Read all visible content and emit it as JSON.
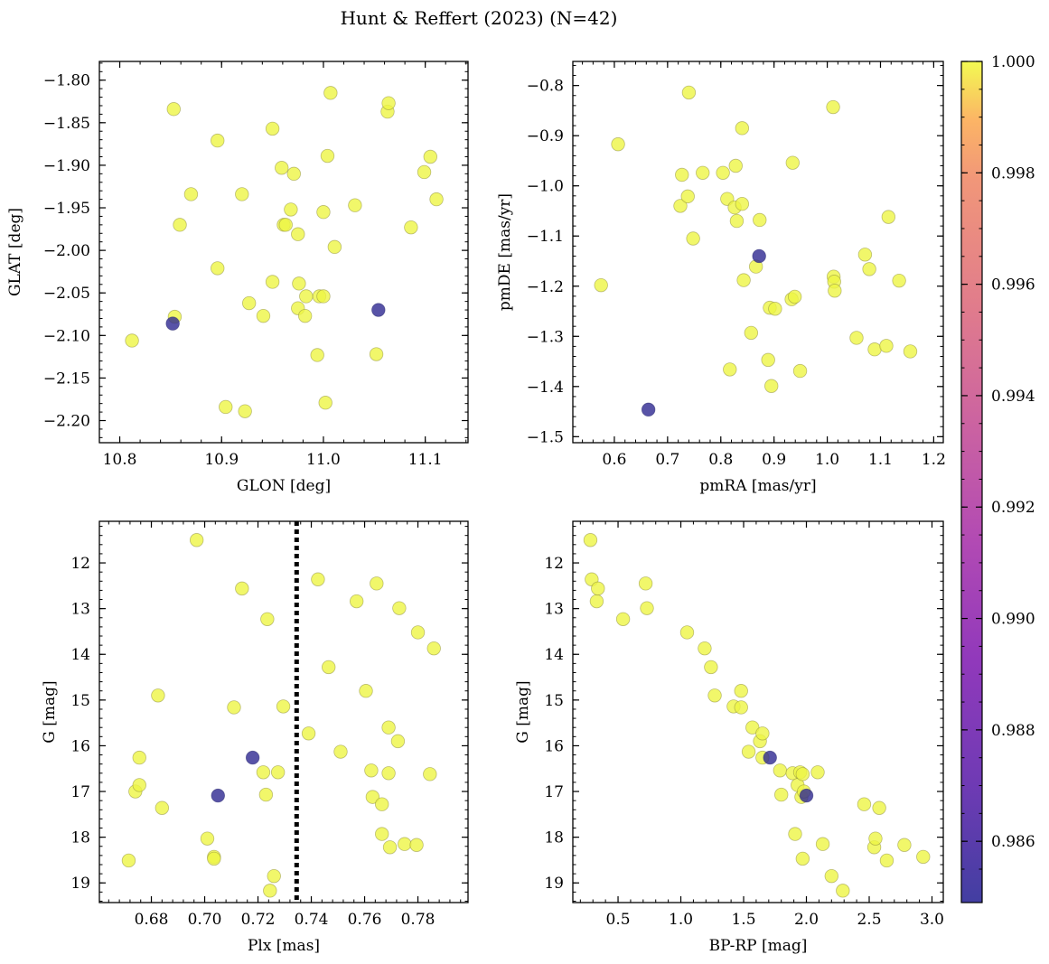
{
  "figure": {
    "title": "Hunt & Reffert (2023) (N=42)"
  },
  "colorbar": {
    "min": 0.9849,
    "max": 1.0,
    "ticks": [
      0.986,
      0.988,
      0.99,
      0.992,
      0.994,
      0.996,
      0.998,
      1.0
    ],
    "tick_labels": [
      "0.986",
      "0.988",
      "0.990",
      "0.992",
      "0.994",
      "0.996",
      "0.998",
      "1.000"
    ],
    "colormap": "plasma",
    "alpha": 0.75
  },
  "chart_data": [
    {
      "type": "scatter",
      "panel": "top-left",
      "xlabel": "GLON [deg]",
      "ylabel": "GLAT [deg]",
      "xlim": [
        10.78,
        11.142
      ],
      "ylim": [
        -2.226,
        -1.778
      ],
      "y_inverted": false,
      "xticks": [
        10.8,
        10.9,
        11.0,
        11.1
      ],
      "xtick_labels": [
        "10.8",
        "10.9",
        "11.0",
        "11.1"
      ],
      "yticks": [
        -2.2,
        -2.15,
        -2.1,
        -2.05,
        -2.0,
        -1.95,
        -1.9,
        -1.85,
        -1.8
      ],
      "ytick_labels": [
        "−2.20",
        "−2.15",
        "−2.10",
        "−2.05",
        "−2.00",
        "−1.95",
        "−1.90",
        "−1.85",
        "−1.80"
      ],
      "points": [
        {
          "x": 10.812,
          "y": -2.106,
          "p": 1.0
        },
        {
          "x": 10.853,
          "y": -1.834,
          "p": 1.0
        },
        {
          "x": 10.854,
          "y": -2.078,
          "p": 1.0
        },
        {
          "x": 10.859,
          "y": -1.97,
          "p": 1.0
        },
        {
          "x": 10.87,
          "y": -1.934,
          "p": 1.0
        },
        {
          "x": 10.896,
          "y": -1.871,
          "p": 1.0
        },
        {
          "x": 10.896,
          "y": -2.021,
          "p": 1.0
        },
        {
          "x": 10.904,
          "y": -2.184,
          "p": 1.0
        },
        {
          "x": 10.92,
          "y": -1.934,
          "p": 1.0
        },
        {
          "x": 10.923,
          "y": -2.189,
          "p": 1.0
        },
        {
          "x": 10.927,
          "y": -2.062,
          "p": 1.0
        },
        {
          "x": 10.941,
          "y": -2.077,
          "p": 1.0
        },
        {
          "x": 10.95,
          "y": -1.857,
          "p": 1.0
        },
        {
          "x": 10.95,
          "y": -2.037,
          "p": 1.0
        },
        {
          "x": 10.959,
          "y": -1.903,
          "p": 1.0
        },
        {
          "x": 10.961,
          "y": -1.97,
          "p": 1.0
        },
        {
          "x": 10.963,
          "y": -1.97,
          "p": 1.0
        },
        {
          "x": 10.968,
          "y": -1.952,
          "p": 1.0
        },
        {
          "x": 10.971,
          "y": -1.91,
          "p": 1.0
        },
        {
          "x": 10.975,
          "y": -1.981,
          "p": 1.0
        },
        {
          "x": 10.975,
          "y": -2.068,
          "p": 1.0
        },
        {
          "x": 10.976,
          "y": -2.039,
          "p": 1.0
        },
        {
          "x": 10.982,
          "y": -2.077,
          "p": 1.0
        },
        {
          "x": 10.983,
          "y": -2.054,
          "p": 1.0
        },
        {
          "x": 10.994,
          "y": -2.123,
          "p": 1.0
        },
        {
          "x": 10.996,
          "y": -2.054,
          "p": 1.0
        },
        {
          "x": 11.0,
          "y": -1.955,
          "p": 1.0
        },
        {
          "x": 11.0,
          "y": -2.054,
          "p": 1.0
        },
        {
          "x": 11.002,
          "y": -2.179,
          "p": 1.0
        },
        {
          "x": 11.004,
          "y": -1.889,
          "p": 1.0
        },
        {
          "x": 11.007,
          "y": -1.815,
          "p": 1.0
        },
        {
          "x": 11.011,
          "y": -1.996,
          "p": 1.0
        },
        {
          "x": 11.031,
          "y": -1.947,
          "p": 1.0
        },
        {
          "x": 11.052,
          "y": -2.122,
          "p": 1.0
        },
        {
          "x": 11.063,
          "y": -1.837,
          "p": 1.0
        },
        {
          "x": 11.064,
          "y": -1.827,
          "p": 1.0
        },
        {
          "x": 11.086,
          "y": -1.973,
          "p": 1.0
        },
        {
          "x": 11.099,
          "y": -1.908,
          "p": 1.0
        },
        {
          "x": 11.105,
          "y": -1.89,
          "p": 1.0
        },
        {
          "x": 11.111,
          "y": -1.94,
          "p": 1.0
        },
        {
          "x": 10.852,
          "y": -2.086,
          "p": 0.985
        },
        {
          "x": 11.054,
          "y": -2.07,
          "p": 0.985
        }
      ]
    },
    {
      "type": "scatter",
      "panel": "top-right",
      "xlabel": "pmRA [mas/yr]",
      "ylabel": "pmDE [mas/yr]",
      "xlim": [
        0.522,
        1.218
      ],
      "ylim": [
        -1.512,
        -0.752
      ],
      "y_inverted": false,
      "xticks": [
        0.6,
        0.7,
        0.8,
        0.9,
        1.0,
        1.1,
        1.2
      ],
      "xtick_labels": [
        "0.6",
        "0.7",
        "0.8",
        "0.9",
        "1.0",
        "1.1",
        "1.2"
      ],
      "yticks": [
        -1.5,
        -1.4,
        -1.3,
        -1.2,
        -1.1,
        -1.0,
        -0.9,
        -0.8
      ],
      "ytick_labels": [
        "−1.5",
        "−1.4",
        "−1.3",
        "−1.2",
        "−1.1",
        "−1.0",
        "−0.9",
        "−0.8"
      ],
      "points": [
        {
          "x": 0.575,
          "y": -1.198,
          "p": 1.0
        },
        {
          "x": 0.607,
          "y": -0.917,
          "p": 1.0
        },
        {
          "x": 0.724,
          "y": -1.04,
          "p": 1.0
        },
        {
          "x": 0.727,
          "y": -0.978,
          "p": 1.0
        },
        {
          "x": 0.738,
          "y": -1.021,
          "p": 1.0
        },
        {
          "x": 0.74,
          "y": -0.814,
          "p": 1.0
        },
        {
          "x": 0.748,
          "y": -1.105,
          "p": 1.0
        },
        {
          "x": 0.766,
          "y": -0.974,
          "p": 1.0
        },
        {
          "x": 0.804,
          "y": -0.974,
          "p": 1.0
        },
        {
          "x": 0.812,
          "y": -1.026,
          "p": 1.0
        },
        {
          "x": 0.817,
          "y": -1.366,
          "p": 1.0
        },
        {
          "x": 0.826,
          "y": -1.043,
          "p": 1.0
        },
        {
          "x": 0.828,
          "y": -0.96,
          "p": 1.0
        },
        {
          "x": 0.83,
          "y": -1.07,
          "p": 1.0
        },
        {
          "x": 0.84,
          "y": -1.036,
          "p": 1.0
        },
        {
          "x": 0.84,
          "y": -0.885,
          "p": 1.0
        },
        {
          "x": 0.843,
          "y": -1.188,
          "p": 1.0
        },
        {
          "x": 0.857,
          "y": -1.293,
          "p": 1.0
        },
        {
          "x": 0.866,
          "y": -1.161,
          "p": 1.0
        },
        {
          "x": 0.873,
          "y": -1.068,
          "p": 1.0
        },
        {
          "x": 0.889,
          "y": -1.347,
          "p": 1.0
        },
        {
          "x": 0.892,
          "y": -1.243,
          "p": 1.0
        },
        {
          "x": 0.895,
          "y": -1.399,
          "p": 1.0
        },
        {
          "x": 0.902,
          "y": -1.245,
          "p": 1.0
        },
        {
          "x": 0.933,
          "y": -1.226,
          "p": 1.0
        },
        {
          "x": 0.935,
          "y": -0.954,
          "p": 1.0
        },
        {
          "x": 0.939,
          "y": -1.221,
          "p": 1.0
        },
        {
          "x": 0.949,
          "y": -1.369,
          "p": 1.0
        },
        {
          "x": 1.011,
          "y": -0.843,
          "p": 1.0
        },
        {
          "x": 1.012,
          "y": -1.181,
          "p": 1.0
        },
        {
          "x": 1.013,
          "y": -1.191,
          "p": 1.0
        },
        {
          "x": 1.014,
          "y": -1.209,
          "p": 1.0
        },
        {
          "x": 1.055,
          "y": -1.303,
          "p": 1.0
        },
        {
          "x": 1.071,
          "y": -1.137,
          "p": 1.0
        },
        {
          "x": 1.079,
          "y": -1.166,
          "p": 1.0
        },
        {
          "x": 1.089,
          "y": -1.326,
          "p": 1.0
        },
        {
          "x": 1.111,
          "y": -1.319,
          "p": 1.0
        },
        {
          "x": 1.115,
          "y": -1.062,
          "p": 1.0
        },
        {
          "x": 1.135,
          "y": -1.189,
          "p": 1.0
        },
        {
          "x": 1.156,
          "y": -1.33,
          "p": 1.0
        },
        {
          "x": 0.872,
          "y": -1.14,
          "p": 0.985
        },
        {
          "x": 0.664,
          "y": -1.446,
          "p": 0.985
        }
      ]
    },
    {
      "type": "scatter",
      "panel": "bottom-left",
      "xlabel": "Plx [mas]",
      "ylabel": "G [mag]",
      "xlim": [
        0.6605,
        0.7988
      ],
      "ylim": [
        19.43,
        11.09
      ],
      "y_inverted": true,
      "vline": 0.7345,
      "xticks": [
        0.68,
        0.7,
        0.72,
        0.74,
        0.76,
        0.78
      ],
      "xtick_labels": [
        "0.68",
        "0.70",
        "0.72",
        "0.74",
        "0.76",
        "0.78"
      ],
      "yticks": [
        12,
        13,
        14,
        15,
        16,
        17,
        18,
        19
      ],
      "ytick_labels": [
        "12",
        "13",
        "14",
        "15",
        "16",
        "17",
        "18",
        "19"
      ],
      "points": [
        {
          "x": 0.6715,
          "y": 18.51,
          "p": 1.0
        },
        {
          "x": 0.674,
          "y": 17.0,
          "p": 1.0
        },
        {
          "x": 0.6755,
          "y": 16.26,
          "p": 1.0
        },
        {
          "x": 0.6755,
          "y": 16.86,
          "p": 1.0
        },
        {
          "x": 0.6825,
          "y": 14.9,
          "p": 1.0
        },
        {
          "x": 0.684,
          "y": 17.36,
          "p": 1.0
        },
        {
          "x": 0.697,
          "y": 11.5,
          "p": 1.0
        },
        {
          "x": 0.701,
          "y": 18.03,
          "p": 1.0
        },
        {
          "x": 0.7035,
          "y": 18.43,
          "p": 1.0
        },
        {
          "x": 0.7035,
          "y": 18.47,
          "p": 1.0
        },
        {
          "x": 0.711,
          "y": 15.16,
          "p": 1.0
        },
        {
          "x": 0.714,
          "y": 12.56,
          "p": 1.0
        },
        {
          "x": 0.722,
          "y": 16.58,
          "p": 1.0
        },
        {
          "x": 0.723,
          "y": 17.07,
          "p": 1.0
        },
        {
          "x": 0.7235,
          "y": 13.23,
          "p": 1.0
        },
        {
          "x": 0.7245,
          "y": 19.17,
          "p": 1.0
        },
        {
          "x": 0.726,
          "y": 18.85,
          "p": 1.0
        },
        {
          "x": 0.7275,
          "y": 16.58,
          "p": 1.0
        },
        {
          "x": 0.7295,
          "y": 15.14,
          "p": 1.0
        },
        {
          "x": 0.739,
          "y": 15.73,
          "p": 1.0
        },
        {
          "x": 0.7425,
          "y": 12.36,
          "p": 1.0
        },
        {
          "x": 0.7465,
          "y": 14.28,
          "p": 1.0
        },
        {
          "x": 0.751,
          "y": 16.13,
          "p": 1.0
        },
        {
          "x": 0.757,
          "y": 12.84,
          "p": 1.0
        },
        {
          "x": 0.7605,
          "y": 14.8,
          "p": 1.0
        },
        {
          "x": 0.7625,
          "y": 16.54,
          "p": 1.0
        },
        {
          "x": 0.763,
          "y": 17.12,
          "p": 1.0
        },
        {
          "x": 0.7645,
          "y": 12.45,
          "p": 1.0
        },
        {
          "x": 0.7665,
          "y": 17.93,
          "p": 1.0
        },
        {
          "x": 0.7665,
          "y": 17.28,
          "p": 1.0
        },
        {
          "x": 0.769,
          "y": 15.6,
          "p": 1.0
        },
        {
          "x": 0.769,
          "y": 16.6,
          "p": 1.0
        },
        {
          "x": 0.7695,
          "y": 18.22,
          "p": 1.0
        },
        {
          "x": 0.7725,
          "y": 15.9,
          "p": 1.0
        },
        {
          "x": 0.773,
          "y": 12.99,
          "p": 1.0
        },
        {
          "x": 0.775,
          "y": 18.15,
          "p": 1.0
        },
        {
          "x": 0.78,
          "y": 13.52,
          "p": 1.0
        },
        {
          "x": 0.7795,
          "y": 18.17,
          "p": 1.0
        },
        {
          "x": 0.7845,
          "y": 16.62,
          "p": 1.0
        },
        {
          "x": 0.786,
          "y": 13.87,
          "p": 1.0
        },
        {
          "x": 0.718,
          "y": 16.26,
          "p": 0.985
        },
        {
          "x": 0.705,
          "y": 17.09,
          "p": 0.985
        }
      ]
    },
    {
      "type": "scatter",
      "panel": "bottom-right",
      "xlabel": "BP-RP [mag]",
      "ylabel": "G [mag]",
      "xlim": [
        0.14,
        3.09
      ],
      "ylim": [
        19.43,
        11.09
      ],
      "y_inverted": true,
      "xticks": [
        0.5,
        1.0,
        1.5,
        2.0,
        2.5,
        3.0
      ],
      "xtick_labels": [
        "0.5",
        "1.0",
        "1.5",
        "2.0",
        "2.5",
        "3.0"
      ],
      "yticks": [
        12,
        13,
        14,
        15,
        16,
        17,
        18,
        19
      ],
      "ytick_labels": [
        "12",
        "13",
        "14",
        "15",
        "16",
        "17",
        "18",
        "19"
      ],
      "points": [
        {
          "x": 0.28,
          "y": 11.5,
          "p": 1.0
        },
        {
          "x": 0.29,
          "y": 12.36,
          "p": 1.0
        },
        {
          "x": 0.33,
          "y": 12.84,
          "p": 1.0
        },
        {
          "x": 0.34,
          "y": 12.56,
          "p": 1.0
        },
        {
          "x": 0.54,
          "y": 13.23,
          "p": 1.0
        },
        {
          "x": 0.72,
          "y": 12.45,
          "p": 1.0
        },
        {
          "x": 0.73,
          "y": 12.99,
          "p": 1.0
        },
        {
          "x": 1.05,
          "y": 13.52,
          "p": 1.0
        },
        {
          "x": 1.19,
          "y": 13.87,
          "p": 1.0
        },
        {
          "x": 1.24,
          "y": 14.28,
          "p": 1.0
        },
        {
          "x": 1.27,
          "y": 14.9,
          "p": 1.0
        },
        {
          "x": 1.42,
          "y": 15.14,
          "p": 1.0
        },
        {
          "x": 1.48,
          "y": 15.16,
          "p": 1.0
        },
        {
          "x": 1.48,
          "y": 14.8,
          "p": 1.0
        },
        {
          "x": 1.54,
          "y": 16.13,
          "p": 1.0
        },
        {
          "x": 1.57,
          "y": 15.6,
          "p": 1.0
        },
        {
          "x": 1.63,
          "y": 15.9,
          "p": 1.0
        },
        {
          "x": 1.65,
          "y": 15.73,
          "p": 1.0
        },
        {
          "x": 1.65,
          "y": 16.26,
          "p": 1.0
        },
        {
          "x": 1.79,
          "y": 16.54,
          "p": 1.0
        },
        {
          "x": 1.8,
          "y": 17.07,
          "p": 1.0
        },
        {
          "x": 1.89,
          "y": 16.6,
          "p": 1.0
        },
        {
          "x": 1.91,
          "y": 17.93,
          "p": 1.0
        },
        {
          "x": 1.93,
          "y": 16.86,
          "p": 1.0
        },
        {
          "x": 1.95,
          "y": 16.58,
          "p": 1.0
        },
        {
          "x": 1.96,
          "y": 17.12,
          "p": 1.0
        },
        {
          "x": 1.97,
          "y": 16.62,
          "p": 1.0
        },
        {
          "x": 1.97,
          "y": 18.47,
          "p": 1.0
        },
        {
          "x": 1.98,
          "y": 17.0,
          "p": 1.0
        },
        {
          "x": 2.09,
          "y": 16.58,
          "p": 1.0
        },
        {
          "x": 2.13,
          "y": 18.15,
          "p": 1.0
        },
        {
          "x": 2.2,
          "y": 18.85,
          "p": 1.0
        },
        {
          "x": 2.29,
          "y": 19.17,
          "p": 1.0
        },
        {
          "x": 2.46,
          "y": 17.28,
          "p": 1.0
        },
        {
          "x": 2.54,
          "y": 18.22,
          "p": 1.0
        },
        {
          "x": 2.55,
          "y": 18.03,
          "p": 1.0
        },
        {
          "x": 2.58,
          "y": 17.36,
          "p": 1.0
        },
        {
          "x": 2.64,
          "y": 18.51,
          "p": 1.0
        },
        {
          "x": 2.78,
          "y": 18.17,
          "p": 1.0
        },
        {
          "x": 2.93,
          "y": 18.43,
          "p": 1.0
        },
        {
          "x": 1.71,
          "y": 16.26,
          "p": 0.985
        },
        {
          "x": 2.0,
          "y": 17.09,
          "p": 0.985
        }
      ]
    }
  ]
}
